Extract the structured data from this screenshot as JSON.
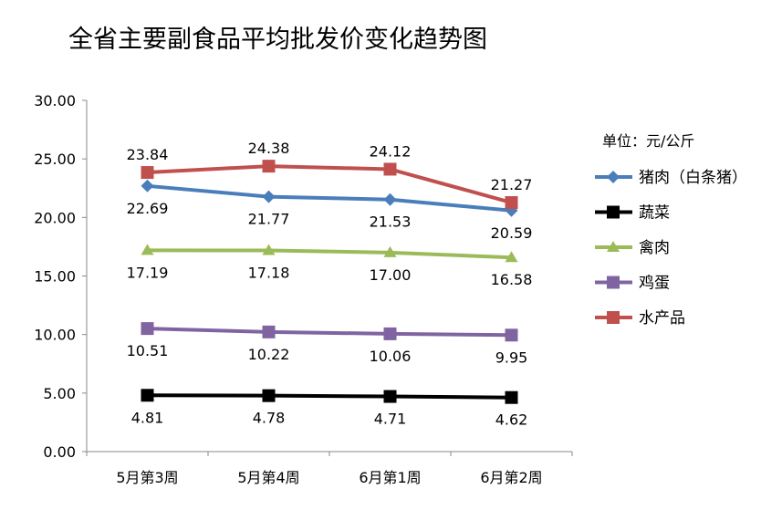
{
  "chart_data": {
    "type": "line",
    "title": "全省主要副食品平均批发价变化趋势图",
    "unit_label": "单位：元/公斤",
    "categories": [
      "5月第3周",
      "5月第4周",
      "6月第1周",
      "6月第2周"
    ],
    "ylim": [
      0,
      30
    ],
    "yticks": [
      "0.00",
      "5.00",
      "10.00",
      "15.00",
      "20.00",
      "25.00",
      "30.00"
    ],
    "grid": false,
    "legend_position": "right",
    "series": [
      {
        "name": "猪肉（白条猪）",
        "color": "#4a7ebb",
        "marker": "diamond",
        "values": [
          22.69,
          21.77,
          21.53,
          20.59
        ],
        "labels": [
          "22.69",
          "21.77",
          "21.53",
          "20.59"
        ],
        "label_pos": "below"
      },
      {
        "name": "蔬菜",
        "color": "#000000",
        "marker": "square",
        "values": [
          4.81,
          4.78,
          4.71,
          4.62
        ],
        "labels": [
          "4.81",
          "4.78",
          "4.71",
          "4.62"
        ],
        "label_pos": "below"
      },
      {
        "name": "禽肉",
        "color": "#9bbb59",
        "marker": "triangle",
        "values": [
          17.19,
          17.18,
          17.0,
          16.58
        ],
        "labels": [
          "17.19",
          "17.18",
          "17.00",
          "16.58"
        ],
        "label_pos": "below"
      },
      {
        "name": "鸡蛋",
        "color": "#8064a2",
        "marker": "square",
        "values": [
          10.51,
          10.22,
          10.06,
          9.95
        ],
        "labels": [
          "10.51",
          "10.22",
          "10.06",
          "9.95"
        ],
        "label_pos": "below"
      },
      {
        "name": "水产品",
        "color": "#c0504d",
        "marker": "square",
        "values": [
          23.84,
          24.38,
          24.12,
          21.27
        ],
        "labels": [
          "23.84",
          "24.38",
          "24.12",
          "21.27"
        ],
        "label_pos": "above"
      }
    ]
  }
}
